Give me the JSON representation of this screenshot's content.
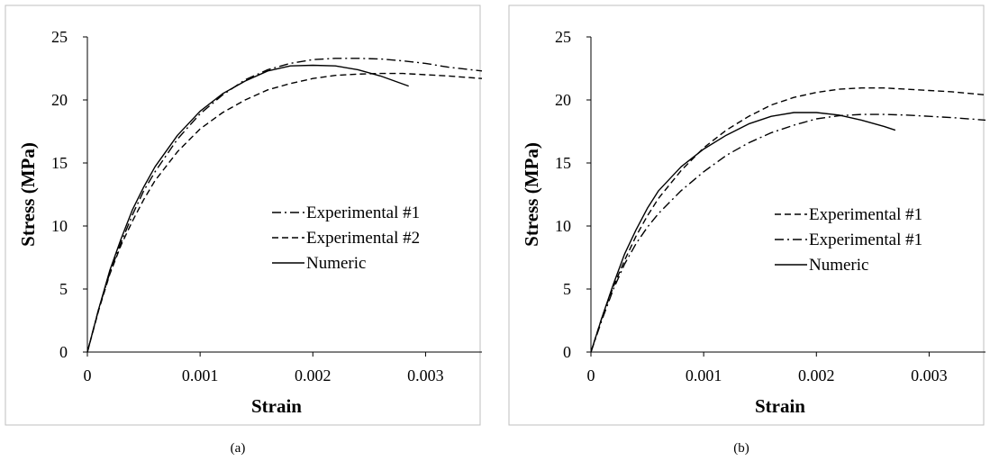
{
  "chart_data": [
    {
      "type": "line",
      "caption": "(a)",
      "xlabel": "Strain",
      "ylabel": "Stress (MPa)",
      "xlim": [
        0,
        0.0035
      ],
      "ylim": [
        0,
        25
      ],
      "x_ticks": [
        "0",
        "0.001",
        "0.002",
        "0.003"
      ],
      "x_tick_values": [
        0,
        0.001,
        0.002,
        0.003
      ],
      "y_ticks": [
        "0",
        "5",
        "10",
        "15",
        "20",
        "25"
      ],
      "y_tick_values": [
        0,
        5,
        10,
        15,
        20,
        25
      ],
      "grid": false,
      "legend_position": "center-right",
      "series": [
        {
          "name": "Experimental #1",
          "dash": "dashdot",
          "x": [
            0,
            0.0001,
            0.0002,
            0.0003,
            0.0004,
            0.0005,
            0.0006,
            0.0008,
            0.001,
            0.0012,
            0.0014,
            0.0016,
            0.0018,
            0.002,
            0.0022,
            0.0024,
            0.0026,
            0.0028,
            0.003,
            0.0032,
            0.0035
          ],
          "y": [
            0,
            3.4,
            6.3,
            8.7,
            10.9,
            12.8,
            14.3,
            16.9,
            18.9,
            20.4,
            21.6,
            22.4,
            22.9,
            23.2,
            23.3,
            23.3,
            23.25,
            23.1,
            22.9,
            22.6,
            22.3
          ]
        },
        {
          "name": "Experimental #2",
          "dash": "dashed",
          "x": [
            0,
            0.0001,
            0.0002,
            0.0003,
            0.0004,
            0.0005,
            0.0006,
            0.0008,
            0.001,
            0.0012,
            0.0014,
            0.0016,
            0.0018,
            0.002,
            0.0022,
            0.0024,
            0.0026,
            0.0028,
            0.003,
            0.0032,
            0.0035
          ],
          "y": [
            0,
            3.3,
            6.2,
            8.5,
            10.4,
            12.1,
            13.6,
            15.9,
            17.7,
            19.0,
            20.0,
            20.8,
            21.3,
            21.7,
            21.95,
            22.05,
            22.1,
            22.1,
            22.0,
            21.9,
            21.7
          ]
        },
        {
          "name": "Numeric",
          "dash": "solid",
          "x": [
            0,
            0.0001,
            0.0002,
            0.0003,
            0.0004,
            0.0005,
            0.0006,
            0.0008,
            0.001,
            0.0012,
            0.0014,
            0.0016,
            0.0018,
            0.002,
            0.0022,
            0.0024,
            0.0026,
            0.00285
          ],
          "y": [
            0,
            3.4,
            6.5,
            9.0,
            11.3,
            13.1,
            14.7,
            17.2,
            19.1,
            20.5,
            21.5,
            22.3,
            22.7,
            22.75,
            22.7,
            22.4,
            21.9,
            21.1
          ]
        }
      ]
    },
    {
      "type": "line",
      "caption": "(b)",
      "xlabel": "Strain",
      "ylabel": "Stress (MPa)",
      "xlim": [
        0,
        0.0035
      ],
      "ylim": [
        0,
        25
      ],
      "x_ticks": [
        "0",
        "0.001",
        "0.002",
        "0.003"
      ],
      "x_tick_values": [
        0,
        0.001,
        0.002,
        0.003
      ],
      "y_ticks": [
        "0",
        "5",
        "10",
        "15",
        "20",
        "25"
      ],
      "y_tick_values": [
        0,
        5,
        10,
        15,
        20,
        25
      ],
      "grid": false,
      "legend_position": "center-right",
      "series": [
        {
          "name": "Experimental #1",
          "dash": "dashed",
          "x": [
            0,
            0.0001,
            0.0002,
            0.0003,
            0.0004,
            0.0005,
            0.0006,
            0.0008,
            0.001,
            0.0012,
            0.0014,
            0.0016,
            0.0018,
            0.002,
            0.0022,
            0.0024,
            0.0026,
            0.0028,
            0.003,
            0.0032,
            0.0035
          ],
          "y": [
            0,
            2.8,
            5.2,
            7.3,
            9.2,
            10.8,
            12.2,
            14.4,
            16.2,
            17.6,
            18.7,
            19.6,
            20.2,
            20.6,
            20.85,
            20.95,
            20.95,
            20.85,
            20.75,
            20.65,
            20.4
          ]
        },
        {
          "name": "Experimental #1",
          "dash": "dashdot",
          "x": [
            0,
            0.0001,
            0.0002,
            0.0003,
            0.0004,
            0.0005,
            0.0006,
            0.0008,
            0.001,
            0.0012,
            0.0014,
            0.0016,
            0.0018,
            0.002,
            0.0022,
            0.0024,
            0.0026,
            0.0028,
            0.003,
            0.0032,
            0.0035
          ],
          "y": [
            0,
            2.6,
            5.0,
            7.0,
            8.6,
            9.9,
            11.0,
            12.8,
            14.3,
            15.6,
            16.6,
            17.4,
            18.0,
            18.5,
            18.75,
            18.85,
            18.85,
            18.8,
            18.7,
            18.6,
            18.4
          ]
        },
        {
          "name": "Numeric",
          "dash": "solid",
          "x": [
            0,
            0.0001,
            0.0002,
            0.0003,
            0.0004,
            0.0005,
            0.0006,
            0.0008,
            0.001,
            0.0012,
            0.0014,
            0.0016,
            0.0018,
            0.002,
            0.0022,
            0.0024,
            0.0026,
            0.0027
          ],
          "y": [
            0,
            2.8,
            5.4,
            7.8,
            9.7,
            11.4,
            12.8,
            14.7,
            16.1,
            17.2,
            18.1,
            18.7,
            19.0,
            19.0,
            18.8,
            18.4,
            17.9,
            17.6
          ]
        }
      ]
    }
  ]
}
